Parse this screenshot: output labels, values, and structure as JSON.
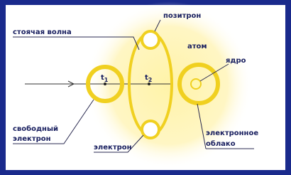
{
  "labels": {
    "positron": "позитрон",
    "standing_wave": "стоячая волна",
    "atom": "атом",
    "nucleus": "ядро",
    "t1": {
      "base": "t",
      "sub": "1"
    },
    "t2": {
      "base": "t",
      "sub": "2"
    },
    "free_electron": [
      "свободный",
      "электрон"
    ],
    "electron": "электрон",
    "electron_cloud": [
      "электронное",
      "облако"
    ]
  }
}
